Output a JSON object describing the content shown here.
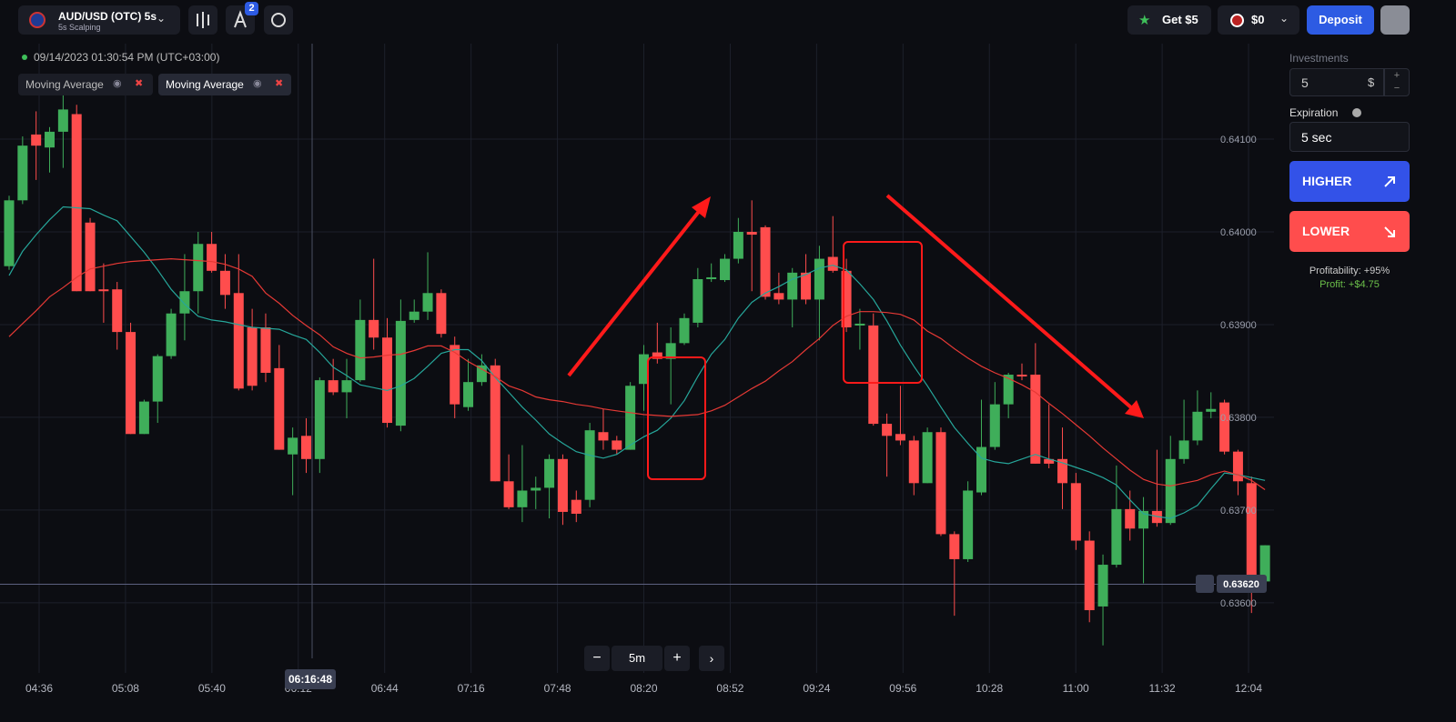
{
  "header": {
    "asset": "AUD/USD (OTC) 5s",
    "asset_sub": "5s Scalping",
    "badge": "2",
    "bonus": "Get $5",
    "balance": "$0",
    "deposit": "Deposit"
  },
  "chart": {
    "type": "candlestick",
    "datetime": "09/14/2023 01:30:54 PM (UTC+03:00)",
    "indicators": [
      "Moving Average",
      "Moving Average"
    ],
    "up_color": "#3fae5a",
    "down_color": "#ff4d4d",
    "ylim": [
      0.63542,
      0.64203
    ],
    "yticks": [
      {
        "value": 0.641,
        "label": "0.64100"
      },
      {
        "value": 0.64,
        "label": "0.64000"
      },
      {
        "value": 0.639,
        "label": "0.63900"
      },
      {
        "value": 0.638,
        "label": "0.63800"
      },
      {
        "value": 0.637,
        "label": "0.63700"
      },
      {
        "value": 0.636,
        "label": "0.63600"
      }
    ],
    "xticks": [
      "04:36",
      "05:08",
      "05:40",
      "06:12",
      "06:44",
      "07:16",
      "07:48",
      "08:20",
      "08:52",
      "09:24",
      "09:56",
      "10:28",
      "11:00",
      "11:32",
      "12:04"
    ],
    "candles": {
      "open": [
        0.63963,
        0.64034,
        0.64105,
        0.64091,
        0.64108,
        0.64127,
        0.6401,
        0.63938,
        0.63938,
        0.63892,
        0.63782,
        0.63817,
        0.63866,
        0.63912,
        0.63936,
        0.63987,
        0.63958,
        0.63934,
        0.63897,
        0.63897,
        0.63853,
        0.6376,
        0.6378,
        0.63755,
        0.6384,
        0.63827,
        0.6384,
        0.63905,
        0.63886,
        0.63791,
        0.63905,
        0.63914,
        0.63934,
        0.63878,
        0.63811,
        0.63838,
        0.63856,
        0.63731,
        0.63703,
        0.63721,
        0.63724,
        0.63755,
        0.63711,
        0.63711,
        0.63784,
        0.63775,
        0.63765,
        0.63836,
        0.6387,
        0.63863,
        0.6388,
        0.63902,
        0.63949,
        0.63948,
        0.63971,
        0.64,
        0.64005,
        0.63934,
        0.63927,
        0.63956,
        0.63927,
        0.63973,
        0.63958,
        0.63899,
        0.63899,
        0.63793,
        0.63782,
        0.63775,
        0.63729,
        0.63784,
        0.63674,
        0.63647,
        0.63719,
        0.63768,
        0.63814,
        0.63846,
        0.63846,
        0.63755,
        0.63755,
        0.63729,
        0.63667,
        0.63596,
        0.63641,
        0.63701,
        0.6368,
        0.63699,
        0.63686,
        0.63755,
        0.63775,
        0.63806,
        0.63816,
        0.63763,
        0.63729,
        0.63623
      ],
      "high": [
        0.64039,
        0.64103,
        0.6413,
        0.64113,
        0.64152,
        0.64137,
        0.64015,
        0.63966,
        0.63946,
        0.63902,
        0.63819,
        0.63868,
        0.63917,
        0.63976,
        0.64,
        0.64,
        0.63976,
        0.63976,
        0.63917,
        0.63912,
        0.63878,
        0.63789,
        0.63799,
        0.63843,
        0.63863,
        0.63863,
        0.63927,
        0.63971,
        0.63907,
        0.63927,
        0.63927,
        0.63978,
        0.63938,
        0.63887,
        0.63863,
        0.63868,
        0.63863,
        0.6376,
        0.6377,
        0.63736,
        0.6376,
        0.6376,
        0.63721,
        0.63794,
        0.63809,
        0.6378,
        0.63838,
        0.63878,
        0.63902,
        0.63897,
        0.63912,
        0.63961,
        0.63966,
        0.63976,
        0.64015,
        0.64034,
        0.64007,
        0.63956,
        0.63961,
        0.63976,
        0.63985,
        0.64017,
        0.63971,
        0.63917,
        0.63912,
        0.63804,
        0.63834,
        0.6378,
        0.63789,
        0.63789,
        0.63677,
        0.63731,
        0.63819,
        0.63838,
        0.63848,
        0.63858,
        0.6388,
        0.63814,
        0.63789,
        0.6374,
        0.63677,
        0.63652,
        0.63748,
        0.63721,
        0.63714,
        0.63765,
        0.6378,
        0.63819,
        0.63829,
        0.63827,
        0.63819,
        0.63765,
        0.63736,
        0.63662
      ],
      "low": [
        0.63959,
        0.6403,
        0.64056,
        0.64064,
        0.64069,
        0.63936,
        0.63936,
        0.63902,
        0.63873,
        0.63782,
        0.63782,
        0.63794,
        0.63863,
        0.63883,
        0.63912,
        0.63956,
        0.63917,
        0.63829,
        0.63829,
        0.63838,
        0.63765,
        0.63716,
        0.6374,
        0.6374,
        0.63824,
        0.63799,
        0.63838,
        0.63873,
        0.63789,
        0.63785,
        0.63902,
        0.63905,
        0.63886,
        0.63799,
        0.63807,
        0.63834,
        0.63731,
        0.63701,
        0.63687,
        0.63701,
        0.63691,
        0.63684,
        0.63687,
        0.63703,
        0.63765,
        0.6376,
        0.63765,
        0.63807,
        0.63858,
        0.63814,
        0.63878,
        0.63897,
        0.63946,
        0.63946,
        0.63966,
        0.63936,
        0.63927,
        0.63922,
        0.63897,
        0.63922,
        0.63883,
        0.63956,
        0.63892,
        0.63873,
        0.63791,
        0.63736,
        0.6377,
        0.63716,
        0.63729,
        0.63672,
        0.63586,
        0.63644,
        0.63716,
        0.63765,
        0.63799,
        0.6384,
        0.6375,
        0.63745,
        0.63701,
        0.63657,
        0.63579,
        0.63554,
        0.63638,
        0.63667,
        0.63621,
        0.63682,
        0.63684,
        0.6375,
        0.6377,
        0.63799,
        0.6376,
        0.63716,
        0.63589,
        0.63618
      ],
      "close": [
        0.64034,
        0.64093,
        0.64093,
        0.64108,
        0.64132,
        0.63936,
        0.63936,
        0.63936,
        0.63892,
        0.63782,
        0.63817,
        0.63866,
        0.63912,
        0.63936,
        0.63987,
        0.63958,
        0.63932,
        0.63831,
        0.63834,
        0.63848,
        0.63765,
        0.63778,
        0.63755,
        0.6384,
        0.63827,
        0.6384,
        0.63905,
        0.63886,
        0.63794,
        0.63904,
        0.63914,
        0.63934,
        0.6389,
        0.63814,
        0.63838,
        0.63856,
        0.63731,
        0.63703,
        0.63721,
        0.63724,
        0.63755,
        0.63698,
        0.63696,
        0.63786,
        0.63775,
        0.63765,
        0.63834,
        0.63868,
        0.63863,
        0.6388,
        0.63907,
        0.63949,
        0.63951,
        0.63971,
        0.64,
        0.63997,
        0.6393,
        0.63927,
        0.63956,
        0.63927,
        0.63971,
        0.63958,
        0.63897,
        0.63901,
        0.63793,
        0.6378,
        0.63775,
        0.63729,
        0.63784,
        0.63674,
        0.63647,
        0.63721,
        0.63768,
        0.63814,
        0.63846,
        0.63845,
        0.6375,
        0.6375,
        0.63729,
        0.63667,
        0.63592,
        0.63641,
        0.63701,
        0.6368,
        0.63699,
        0.63686,
        0.63755,
        0.63775,
        0.63806,
        0.63809,
        0.63763,
        0.63731,
        0.63623,
        0.63662
      ]
    },
    "moving_averages": [
      {
        "color": "#26a69a",
        "values": [
          0.63953,
          0.63979,
          0.63997,
          0.64013,
          0.64027,
          0.64026,
          0.64025,
          0.64018,
          0.64012,
          0.63995,
          0.63978,
          0.63959,
          0.63938,
          0.63922,
          0.63909,
          0.63905,
          0.63903,
          0.639,
          0.63897,
          0.63896,
          0.63895,
          0.63889,
          0.63884,
          0.6387,
          0.63854,
          0.63845,
          0.63835,
          0.63832,
          0.63829,
          0.63834,
          0.63842,
          0.63855,
          0.63869,
          0.63873,
          0.63873,
          0.63861,
          0.63843,
          0.63827,
          0.63811,
          0.63797,
          0.63782,
          0.63772,
          0.63763,
          0.63759,
          0.63756,
          0.6376,
          0.6377,
          0.63779,
          0.63786,
          0.63799,
          0.63818,
          0.63844,
          0.63868,
          0.63884,
          0.63907,
          0.63924,
          0.63934,
          0.63941,
          0.63949,
          0.63954,
          0.63961,
          0.63964,
          0.63959,
          0.63944,
          0.63927,
          0.63904,
          0.63878,
          0.63855,
          0.63834,
          0.63811,
          0.63789,
          0.63772,
          0.63756,
          0.63752,
          0.6375,
          0.63755,
          0.6376,
          0.63755,
          0.63751,
          0.63746,
          0.63741,
          0.63735,
          0.63727,
          0.63711,
          0.63696,
          0.63693,
          0.63691,
          0.63697,
          0.63705,
          0.63723,
          0.6374,
          0.63738,
          0.63735,
          0.63732
        ]
      },
      {
        "color": "#e53935",
        "values": [
          0.63887,
          0.63901,
          0.63915,
          0.6393,
          0.6394,
          0.63951,
          0.6396,
          0.63963,
          0.63966,
          0.63968,
          0.63969,
          0.6397,
          0.63971,
          0.6397,
          0.63969,
          0.63968,
          0.63965,
          0.6396,
          0.63952,
          0.63934,
          0.63923,
          0.6391,
          0.63899,
          0.63889,
          0.63876,
          0.63869,
          0.63864,
          0.63865,
          0.63867,
          0.63868,
          0.63872,
          0.63877,
          0.63877,
          0.6387,
          0.6386,
          0.63852,
          0.63844,
          0.63834,
          0.63829,
          0.63822,
          0.63819,
          0.63817,
          0.63814,
          0.63812,
          0.63809,
          0.63807,
          0.63805,
          0.63803,
          0.63802,
          0.63801,
          0.63802,
          0.63803,
          0.63807,
          0.63813,
          0.63822,
          0.63831,
          0.63839,
          0.6385,
          0.6386,
          0.63873,
          0.63885,
          0.63899,
          0.63909,
          0.63914,
          0.63914,
          0.63913,
          0.63911,
          0.63905,
          0.63893,
          0.63885,
          0.63874,
          0.63864,
          0.63855,
          0.63848,
          0.63842,
          0.63835,
          0.63827,
          0.63815,
          0.63804,
          0.63792,
          0.6378,
          0.63767,
          0.63755,
          0.63743,
          0.63733,
          0.63728,
          0.63726,
          0.63729,
          0.63732,
          0.63738,
          0.63742,
          0.63738,
          0.63732,
          0.63722
        ]
      }
    ],
    "current_price": {
      "value": 0.6362,
      "label": "0.63620"
    },
    "crosshair_time": "06:16:48",
    "timeframe": "5m"
  },
  "panel": {
    "investments_label": "Investments",
    "investment": "5",
    "currency": "$",
    "expiration_label": "Expiration",
    "expiration": "5 sec",
    "higher": "HIGHER",
    "lower": "LOWER",
    "profitability": "Profitability: +95%",
    "profit": "Profit: +$4.75"
  }
}
